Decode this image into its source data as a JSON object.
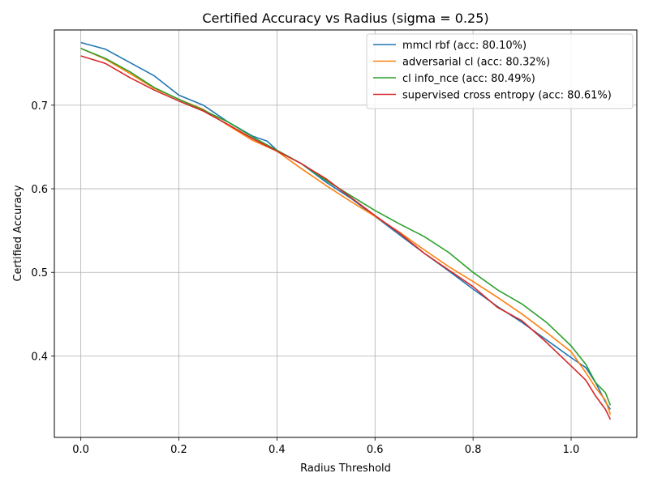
{
  "chart_data": {
    "type": "line",
    "title": "Certified Accuracy vs Radius (sigma = 0.25)",
    "xlabel": "Radius Threshold",
    "ylabel": "Certified Accuracy",
    "xlim": [
      -0.054,
      1.134
    ],
    "ylim": [
      0.3025,
      0.79
    ],
    "xticks": [
      0.0,
      0.2,
      0.4,
      0.6,
      0.8,
      1.0
    ],
    "xtick_labels": [
      "0.0",
      "0.2",
      "0.4",
      "0.6",
      "0.8",
      "1.0"
    ],
    "yticks": [
      0.4,
      0.5,
      0.6,
      0.7
    ],
    "ytick_labels": [
      "0.4",
      "0.5",
      "0.6",
      "0.7"
    ],
    "grid": true,
    "legend_position": "top-right",
    "series": [
      {
        "name": "mmcl rbf (acc: 80.10%)",
        "color": "#1f77b4",
        "points": [
          [
            0.0,
            0.775
          ],
          [
            0.05,
            0.767
          ],
          [
            0.1,
            0.751
          ],
          [
            0.15,
            0.735
          ],
          [
            0.2,
            0.712
          ],
          [
            0.25,
            0.7
          ],
          [
            0.3,
            0.68
          ],
          [
            0.35,
            0.663
          ],
          [
            0.38,
            0.657
          ],
          [
            0.4,
            0.646
          ],
          [
            0.45,
            0.63
          ],
          [
            0.5,
            0.608
          ],
          [
            0.55,
            0.589
          ],
          [
            0.6,
            0.567
          ],
          [
            0.65,
            0.545
          ],
          [
            0.7,
            0.523
          ],
          [
            0.75,
            0.502
          ],
          [
            0.8,
            0.48
          ],
          [
            0.85,
            0.459
          ],
          [
            0.9,
            0.44
          ],
          [
            0.95,
            0.419
          ],
          [
            1.0,
            0.398
          ],
          [
            1.03,
            0.386
          ],
          [
            1.05,
            0.368
          ],
          [
            1.07,
            0.345
          ],
          [
            1.08,
            0.336
          ]
        ]
      },
      {
        "name": "adversarial cl (acc: 80.32%)",
        "color": "#ff7f0e",
        "points": [
          [
            0.0,
            0.768
          ],
          [
            0.05,
            0.755
          ],
          [
            0.1,
            0.738
          ],
          [
            0.15,
            0.72
          ],
          [
            0.2,
            0.707
          ],
          [
            0.25,
            0.695
          ],
          [
            0.3,
            0.676
          ],
          [
            0.35,
            0.658
          ],
          [
            0.4,
            0.645
          ],
          [
            0.45,
            0.624
          ],
          [
            0.5,
            0.604
          ],
          [
            0.55,
            0.585
          ],
          [
            0.6,
            0.567
          ],
          [
            0.65,
            0.548
          ],
          [
            0.7,
            0.527
          ],
          [
            0.75,
            0.507
          ],
          [
            0.8,
            0.489
          ],
          [
            0.85,
            0.47
          ],
          [
            0.9,
            0.45
          ],
          [
            0.95,
            0.428
          ],
          [
            1.0,
            0.405
          ],
          [
            1.03,
            0.38
          ],
          [
            1.05,
            0.362
          ],
          [
            1.07,
            0.347
          ],
          [
            1.08,
            0.33
          ]
        ]
      },
      {
        "name": "cl info_nce (acc: 80.49%)",
        "color": "#2ca02c",
        "points": [
          [
            0.0,
            0.768
          ],
          [
            0.05,
            0.756
          ],
          [
            0.1,
            0.74
          ],
          [
            0.15,
            0.721
          ],
          [
            0.2,
            0.707
          ],
          [
            0.25,
            0.694
          ],
          [
            0.3,
            0.68
          ],
          [
            0.35,
            0.662
          ],
          [
            0.4,
            0.646
          ],
          [
            0.45,
            0.63
          ],
          [
            0.5,
            0.61
          ],
          [
            0.55,
            0.592
          ],
          [
            0.6,
            0.574
          ],
          [
            0.65,
            0.558
          ],
          [
            0.7,
            0.543
          ],
          [
            0.75,
            0.524
          ],
          [
            0.8,
            0.5
          ],
          [
            0.85,
            0.479
          ],
          [
            0.9,
            0.462
          ],
          [
            0.95,
            0.44
          ],
          [
            1.0,
            0.412
          ],
          [
            1.03,
            0.39
          ],
          [
            1.05,
            0.368
          ],
          [
            1.07,
            0.356
          ],
          [
            1.08,
            0.341
          ]
        ]
      },
      {
        "name": "supervised cross entropy (acc: 80.61%)",
        "color": "#d62728",
        "points": [
          [
            0.0,
            0.759
          ],
          [
            0.05,
            0.75
          ],
          [
            0.1,
            0.733
          ],
          [
            0.15,
            0.718
          ],
          [
            0.2,
            0.705
          ],
          [
            0.25,
            0.693
          ],
          [
            0.3,
            0.677
          ],
          [
            0.35,
            0.66
          ],
          [
            0.4,
            0.645
          ],
          [
            0.45,
            0.63
          ],
          [
            0.5,
            0.612
          ],
          [
            0.55,
            0.59
          ],
          [
            0.6,
            0.568
          ],
          [
            0.65,
            0.547
          ],
          [
            0.7,
            0.523
          ],
          [
            0.75,
            0.503
          ],
          [
            0.8,
            0.483
          ],
          [
            0.85,
            0.458
          ],
          [
            0.9,
            0.442
          ],
          [
            0.95,
            0.416
          ],
          [
            1.0,
            0.388
          ],
          [
            1.03,
            0.371
          ],
          [
            1.05,
            0.352
          ],
          [
            1.07,
            0.336
          ],
          [
            1.08,
            0.324
          ]
        ]
      }
    ]
  }
}
